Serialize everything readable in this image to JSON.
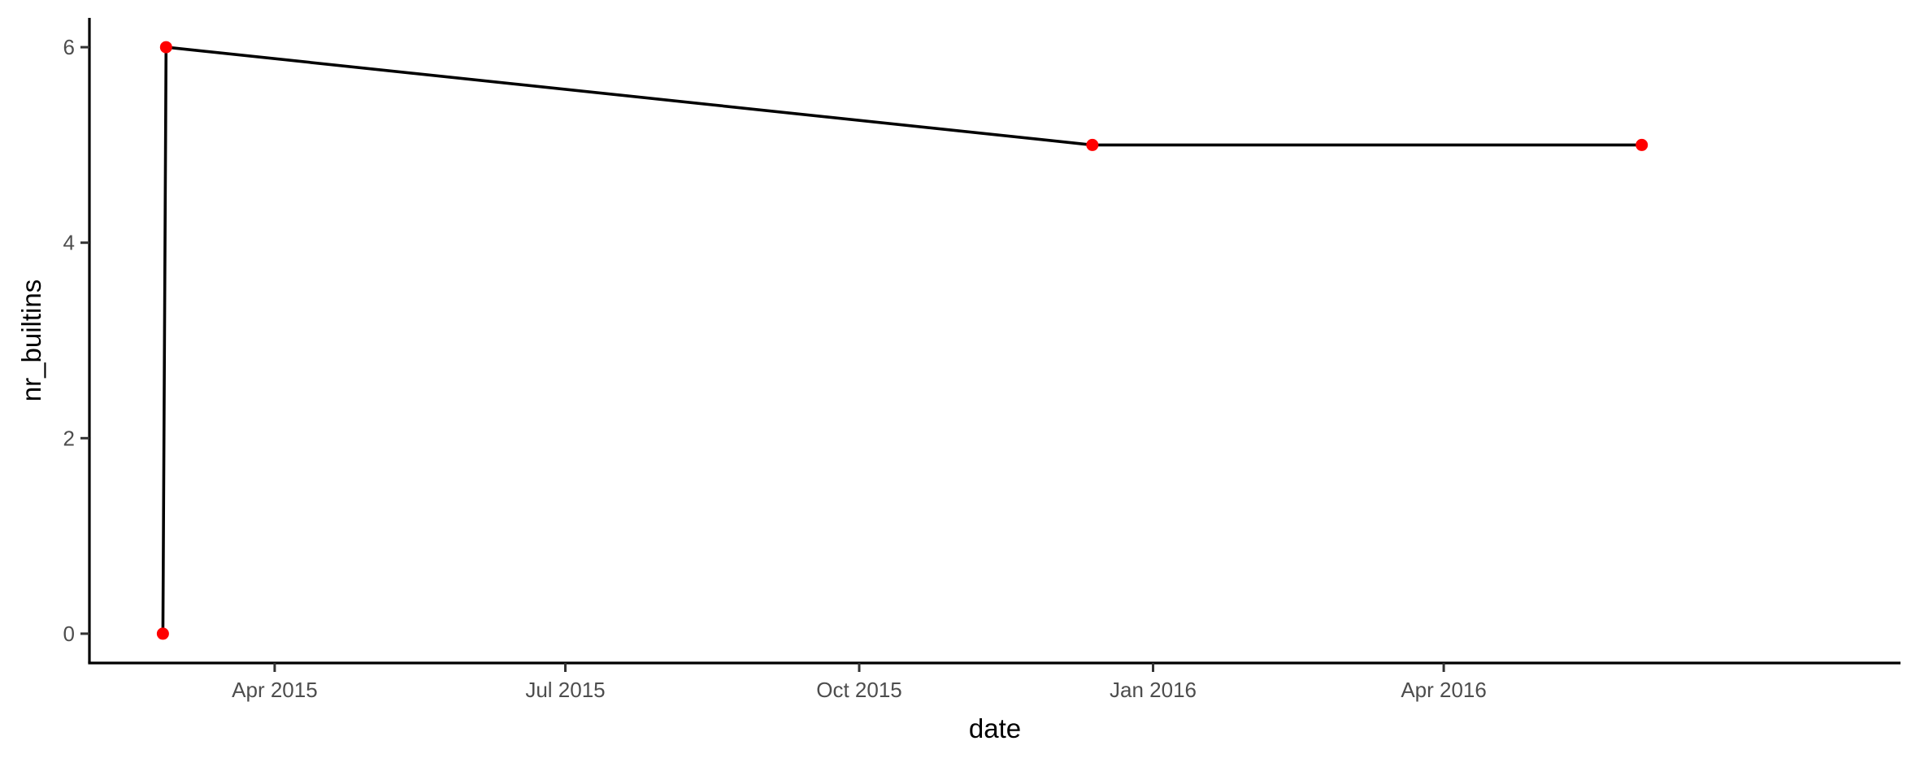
{
  "chart_data": {
    "type": "line",
    "xlabel": "date",
    "ylabel": "nr_builtins",
    "x_axis_type": "date",
    "xlim": [
      "2015-02-02",
      "2016-08-22"
    ],
    "ylim": [
      -0.3,
      6.3
    ],
    "x_ticks": [
      {
        "date": "2015-04-01",
        "label": "Apr 2015"
      },
      {
        "date": "2015-07-01",
        "label": "Jul 2015"
      },
      {
        "date": "2015-10-01",
        "label": "Oct 2015"
      },
      {
        "date": "2016-01-01",
        "label": "Jan 2016"
      },
      {
        "date": "2016-04-01",
        "label": "Apr 2016"
      }
    ],
    "y_ticks": [
      {
        "value": 0,
        "label": "0"
      },
      {
        "value": 2,
        "label": "2"
      },
      {
        "value": 4,
        "label": "4"
      },
      {
        "value": 6,
        "label": "6"
      }
    ],
    "grid": false,
    "line_color": "#000000",
    "point_color": "#ff0000",
    "points": [
      {
        "x": "2015-02-25",
        "y": 0
      },
      {
        "x": "2015-02-26",
        "y": 6
      },
      {
        "x": "2015-12-13",
        "y": 5
      },
      {
        "x": "2016-06-02",
        "y": 5
      }
    ]
  }
}
